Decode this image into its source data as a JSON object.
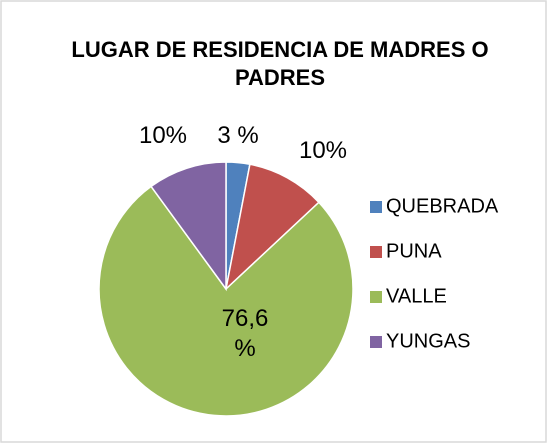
{
  "chart_data": {
    "type": "pie",
    "title": "LUGAR DE RESIDENCIA DE MADRES O PADRES",
    "categories": [
      "QUEBRADA",
      "PUNA",
      "VALLE",
      "YUNGAS"
    ],
    "values": [
      3,
      10,
      76.6,
      10
    ],
    "value_labels": [
      "3 %",
      "10%",
      "76,6 %",
      "10%"
    ],
    "colors": [
      "#4f81bd",
      "#c0504d",
      "#9bbb59",
      "#8064a2"
    ],
    "legend": "right"
  }
}
